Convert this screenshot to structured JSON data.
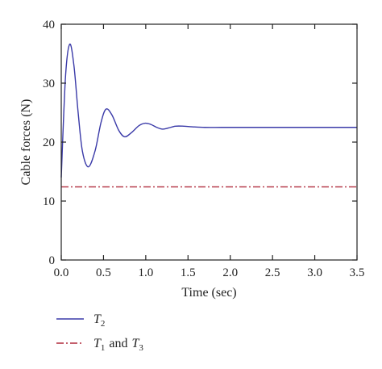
{
  "chart_data": {
    "type": "line",
    "title": "",
    "xlabel": "Time (sec)",
    "ylabel": "Cable forces (N)",
    "xlim": [
      0,
      3.5
    ],
    "ylim": [
      0,
      40
    ],
    "x_ticks": [
      0.0,
      0.5,
      1.0,
      1.5,
      2.0,
      2.5,
      3.0,
      3.5
    ],
    "x_tick_labels": [
      "0.0",
      "0.5",
      "1.0",
      "1.5",
      "2.0",
      "2.5",
      "3.0",
      "3.5"
    ],
    "y_ticks": [
      0,
      10,
      20,
      30,
      40
    ],
    "y_tick_labels": [
      "0",
      "10",
      "20",
      "30",
      "40"
    ],
    "grid": false,
    "legend_position": "bottom-left, below plot",
    "series": [
      {
        "legend_symbol": "T",
        "legend_subscript": "2",
        "color": "#3a3aa8",
        "line_style": "solid",
        "x": [
          0.0,
          0.05,
          0.1,
          0.15,
          0.2,
          0.25,
          0.32,
          0.4,
          0.47,
          0.53,
          0.6,
          0.68,
          0.75,
          0.83,
          0.92,
          0.99,
          1.06,
          1.13,
          1.2,
          1.27,
          1.35,
          1.45,
          1.55,
          1.7,
          1.9,
          2.2,
          2.6,
          3.0,
          3.5
        ],
        "y": [
          14.0,
          31.0,
          36.6,
          33.0,
          25.0,
          18.5,
          15.8,
          18.5,
          23.3,
          25.6,
          24.6,
          22.0,
          20.9,
          21.6,
          22.8,
          23.2,
          23.0,
          22.5,
          22.2,
          22.4,
          22.7,
          22.7,
          22.6,
          22.5,
          22.5,
          22.5,
          22.5,
          22.5,
          22.5
        ]
      },
      {
        "legend_symbols": [
          "T",
          "T"
        ],
        "legend_subscripts": [
          "1",
          "3"
        ],
        "legend_joiner": "and",
        "color": "#b02a3c",
        "line_style": "dash-dot",
        "x": [
          0.0,
          3.5
        ],
        "y": [
          12.4,
          12.4
        ]
      }
    ]
  }
}
